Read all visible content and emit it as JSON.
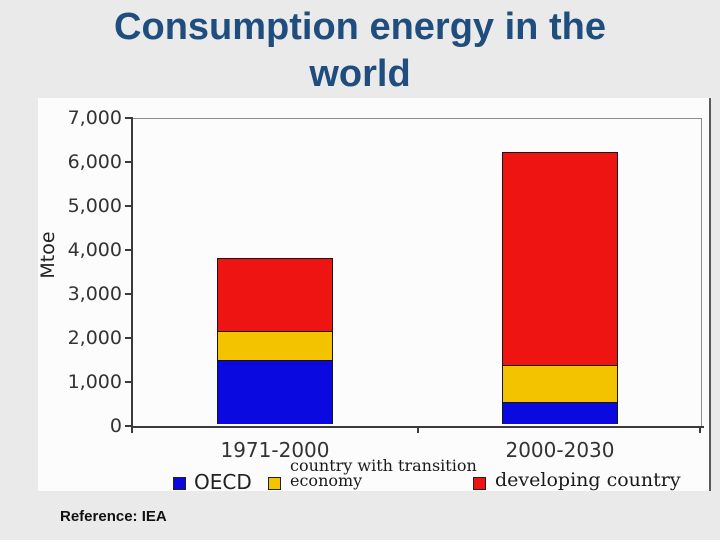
{
  "slide": {
    "title_line1": "Consumption energy in the",
    "title_line2": "world",
    "title_color": "#1f4e7e",
    "background_color": "#eaeaea",
    "reference_label": "Reference: IEA"
  },
  "chart_data": {
    "type": "bar",
    "stacked": true,
    "title": "Consumption energy in the world",
    "categories": [
      "1971-2000",
      "2000-2030"
    ],
    "series": [
      {
        "name": "OECD",
        "color": "#0a0ae0",
        "values": [
          1450,
          500
        ]
      },
      {
        "name": "country with transition economy",
        "color": "#f3c300",
        "values": [
          650,
          850
        ]
      },
      {
        "name": "developing country",
        "color": "#ee1411",
        "values": [
          1650,
          4850
        ]
      }
    ],
    "totals": [
      3750,
      6200
    ],
    "xlabel": "",
    "ylabel": "Mtoe",
    "ylim": [
      0,
      7000
    ],
    "ytick_step": 1000,
    "yticks": [
      "7,000",
      "6,000",
      "5,000",
      "4,000",
      "3,000",
      "2,000",
      "1,000",
      "0"
    ],
    "grid": false,
    "legend_position": "bottom"
  },
  "legend": {
    "items": [
      {
        "label": "OECD"
      },
      {
        "label_line1": "country with transition",
        "label_line2": "economy"
      },
      {
        "label": "developing country"
      }
    ]
  }
}
